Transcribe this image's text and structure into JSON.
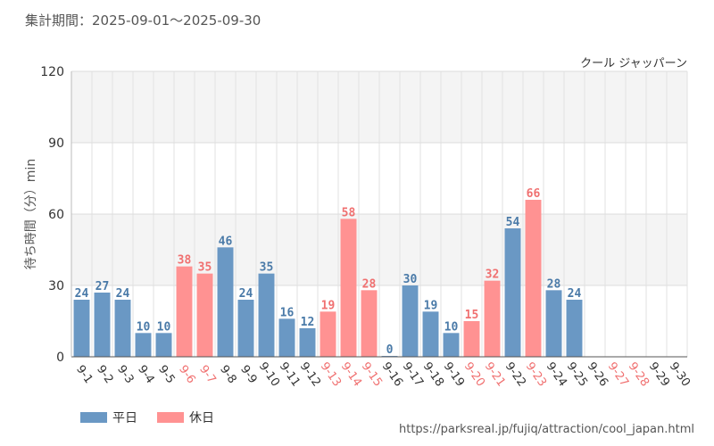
{
  "header": {
    "period": "集計期間：2025-09-01～2025-09-30",
    "attraction": "クール ジャッパーン"
  },
  "footer": {
    "source_url": "https://parksreal.jp/fujiq/attraction/cool_japan.html"
  },
  "colors": {
    "weekday": "#6a98c4",
    "holiday": "#ff9292",
    "weekday_text": "#4a7aa8",
    "holiday_text": "#f07070"
  },
  "chart_data": {
    "type": "bar",
    "ylabel": "待ち時間（分）min",
    "ylim": [
      0,
      120
    ],
    "yticks": [
      0,
      30,
      60,
      90,
      120
    ],
    "grid": true,
    "legend": "bottom-left",
    "categories": [
      "9-1",
      "9-2",
      "9-3",
      "9-4",
      "9-5",
      "9-6",
      "9-7",
      "9-8",
      "9-9",
      "9-10",
      "9-11",
      "9-12",
      "9-13",
      "9-14",
      "9-15",
      "9-16",
      "9-17",
      "9-18",
      "9-19",
      "9-20",
      "9-21",
      "9-22",
      "9-23",
      "9-24",
      "9-25",
      "9-26",
      "9-27",
      "9-28",
      "9-29",
      "9-30"
    ],
    "values": [
      24,
      27,
      24,
      10,
      10,
      38,
      35,
      46,
      24,
      35,
      16,
      12,
      19,
      58,
      28,
      0,
      30,
      19,
      10,
      15,
      32,
      54,
      66,
      28,
      24,
      null,
      null,
      null,
      null,
      null
    ],
    "day_type": [
      "weekday",
      "weekday",
      "weekday",
      "weekday",
      "weekday",
      "holiday",
      "holiday",
      "weekday",
      "weekday",
      "weekday",
      "weekday",
      "weekday",
      "holiday",
      "holiday",
      "holiday",
      "weekday",
      "weekday",
      "weekday",
      "weekday",
      "holiday",
      "holiday",
      "weekday",
      "holiday",
      "weekday",
      "weekday",
      "weekday",
      "holiday",
      "holiday",
      "weekday",
      "weekday"
    ],
    "series": [
      {
        "name": "平日",
        "color": "#6a98c4"
      },
      {
        "name": "休日",
        "color": "#ff9292"
      }
    ]
  }
}
